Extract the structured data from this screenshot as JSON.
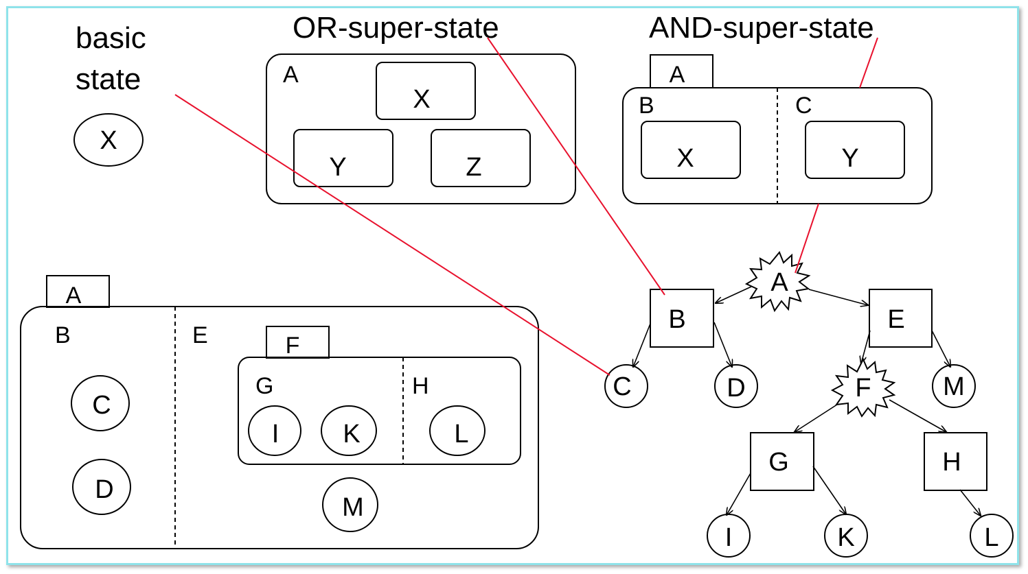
{
  "titles": {
    "basic_line1": "basic",
    "basic_line2": "state",
    "or": "OR-super-state",
    "and": "AND-super-state"
  },
  "basic": {
    "state": "X"
  },
  "or_state": {
    "name": "A",
    "children": [
      "X",
      "Y",
      "Z"
    ]
  },
  "and_state": {
    "name": "A",
    "regions": [
      {
        "name": "B",
        "state": "X"
      },
      {
        "name": "C",
        "state": "Y"
      }
    ]
  },
  "nested": {
    "name": "A",
    "region_b": {
      "name": "B",
      "states": [
        "C",
        "D"
      ]
    },
    "region_e": {
      "name": "E",
      "sub": {
        "name": "F",
        "region_g": {
          "name": "G",
          "states": [
            "I",
            "K"
          ]
        },
        "region_h": {
          "name": "H",
          "states": [
            "L"
          ]
        }
      },
      "state_m": "M"
    }
  },
  "tree": {
    "A": "A",
    "B": "B",
    "E": "E",
    "C": "C",
    "D": "D",
    "F": "F",
    "M": "M",
    "G": "G",
    "H": "H",
    "I": "I",
    "K": "K",
    "L": "L"
  },
  "colors": {
    "frame": "#8fe3ea",
    "connector": "#e8112d",
    "ink": "#000000"
  }
}
